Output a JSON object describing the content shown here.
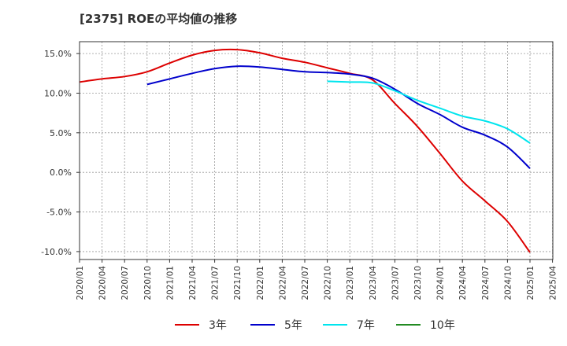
{
  "chart_data": {
    "type": "line",
    "title": "[2375]  ROEの平均値の推移",
    "xlabel": "",
    "ylabel": "",
    "ylim": [
      -11,
      16.5
    ],
    "yticks": [
      15,
      10,
      5,
      0,
      -5,
      -10
    ],
    "ytick_labels": [
      "15.0%",
      "10.0%",
      "5.0%",
      "0.0%",
      "-5.0%",
      "-10.0%"
    ],
    "x_tick_labels": [
      "2020/01",
      "2020/04",
      "2020/07",
      "2020/10",
      "2021/01",
      "2021/04",
      "2021/07",
      "2021/10",
      "2022/01",
      "2022/04",
      "2022/07",
      "2022/10",
      "2023/01",
      "2023/04",
      "2023/07",
      "2023/10",
      "2024/01",
      "2024/04",
      "2024/07",
      "2024/10",
      "2025/01",
      "2025/04"
    ],
    "grid": true,
    "legend_position": "bottom",
    "series": [
      {
        "name": "3年",
        "color": "#dd0000",
        "points": [
          [
            "2020/01",
            11.4
          ],
          [
            "2020/04",
            11.8
          ],
          [
            "2020/07",
            12.1
          ],
          [
            "2020/10",
            12.7
          ],
          [
            "2021/01",
            13.8
          ],
          [
            "2021/04",
            14.8
          ],
          [
            "2021/07",
            15.4
          ],
          [
            "2021/10",
            15.5
          ],
          [
            "2022/01",
            15.1
          ],
          [
            "2022/04",
            14.4
          ],
          [
            "2022/07",
            13.9
          ],
          [
            "2022/10",
            13.2
          ],
          [
            "2023/01",
            12.5
          ],
          [
            "2023/04",
            11.7
          ],
          [
            "2023/07",
            8.7
          ],
          [
            "2023/10",
            5.8
          ],
          [
            "2024/01",
            2.4
          ],
          [
            "2024/04",
            -1.1
          ],
          [
            "2024/07",
            -3.6
          ],
          [
            "2024/10",
            -6.2
          ],
          [
            "2025/01",
            -10.1
          ]
        ]
      },
      {
        "name": "5年",
        "color": "#0000cc",
        "points": [
          [
            "2020/10",
            11.1
          ],
          [
            "2021/01",
            11.8
          ],
          [
            "2021/04",
            12.5
          ],
          [
            "2021/07",
            13.1
          ],
          [
            "2021/10",
            13.4
          ],
          [
            "2022/01",
            13.3
          ],
          [
            "2022/04",
            13.0
          ],
          [
            "2022/07",
            12.7
          ],
          [
            "2022/10",
            12.6
          ],
          [
            "2023/01",
            12.4
          ],
          [
            "2023/04",
            11.9
          ],
          [
            "2023/07",
            10.5
          ],
          [
            "2023/10",
            8.7
          ],
          [
            "2024/01",
            7.3
          ],
          [
            "2024/04",
            5.7
          ],
          [
            "2024/07",
            4.7
          ],
          [
            "2024/10",
            3.2
          ],
          [
            "2025/01",
            0.5
          ]
        ]
      },
      {
        "name": "7年",
        "color": "#00e5ee",
        "points": [
          [
            "2022/10",
            11.5
          ],
          [
            "2023/01",
            11.4
          ],
          [
            "2023/04",
            11.3
          ],
          [
            "2023/07",
            10.3
          ],
          [
            "2023/10",
            9.1
          ],
          [
            "2024/01",
            8.1
          ],
          [
            "2024/04",
            7.1
          ],
          [
            "2024/07",
            6.5
          ],
          [
            "2024/10",
            5.5
          ],
          [
            "2025/01",
            3.7
          ]
        ]
      },
      {
        "name": "10年",
        "color": "#228b22",
        "points": []
      }
    ]
  }
}
